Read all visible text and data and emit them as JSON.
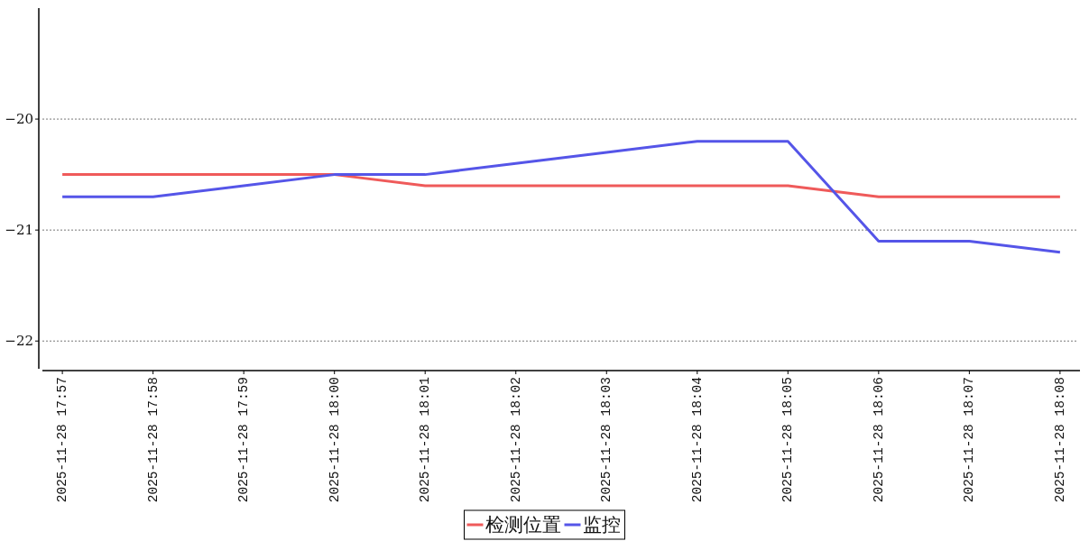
{
  "chart_data": {
    "type": "line",
    "categories": [
      "2025-11-28 17:57",
      "2025-11-28 17:58",
      "2025-11-28 17:59",
      "2025-11-28 18:00",
      "2025-11-28 18:01",
      "2025-11-28 18:02",
      "2025-11-28 18:03",
      "2025-11-28 18:04",
      "2025-11-28 18:05",
      "2025-11-28 18:06",
      "2025-11-28 18:07",
      "2025-11-28 18:08"
    ],
    "series": [
      {
        "name": "检测位置",
        "color": "#ef5a5a",
        "values": [
          -20.5,
          -20.5,
          -20.5,
          -20.5,
          -20.6,
          -20.6,
          -20.6,
          -20.6,
          -20.6,
          -20.7,
          -20.7,
          -20.7
        ]
      },
      {
        "name": "监控",
        "color": "#5555e8",
        "values": [
          -20.7,
          -20.7,
          -20.6,
          -20.5,
          -20.5,
          -20.4,
          -20.3,
          -20.2,
          -20.2,
          -21.1,
          -21.1,
          -21.2
        ]
      }
    ],
    "ylim": [
      -22.25,
      -19
    ],
    "yticks": [
      -20,
      -21,
      -22
    ],
    "grid": "y",
    "legend": "bottom"
  }
}
